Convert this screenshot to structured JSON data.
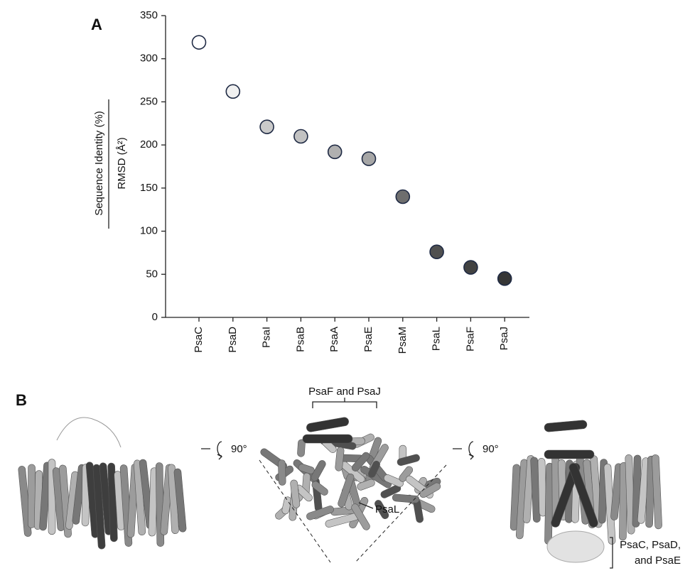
{
  "chart_data": {
    "type": "scatter",
    "panel_label": "A",
    "y_label_numerator": "Sequence Identity (%)",
    "y_label_denominator": "RMSD (Å²)",
    "categories": [
      "PsaC",
      "PsaD",
      "PsaI",
      "PsaB",
      "PsaA",
      "PsaE",
      "PsaM",
      "PsaL",
      "PsaF",
      "PsaJ"
    ],
    "values": [
      319,
      262,
      221,
      210,
      192,
      184,
      140,
      76,
      58,
      45
    ],
    "colors": [
      "#ffffff",
      "#f0f0f0",
      "#cacaca",
      "#c2c2c2",
      "#b0b0b0",
      "#a6a6a6",
      "#6e6e6e",
      "#505050",
      "#424242",
      "#363636"
    ],
    "marker_edge_color": "#1f2a44",
    "ylim": [
      0,
      350
    ],
    "yticks": [
      0,
      50,
      100,
      150,
      200,
      250,
      300,
      350
    ]
  },
  "panel_b": {
    "panel_label": "B",
    "top_bracket_label": "PsaF and PsaJ",
    "rotation_label_1": "90°",
    "rotation_label_2": "90°",
    "psal_label": "PsaL",
    "bottom_bracket_lines": [
      "PsaC, PsaD,",
      "and PsaE"
    ]
  }
}
